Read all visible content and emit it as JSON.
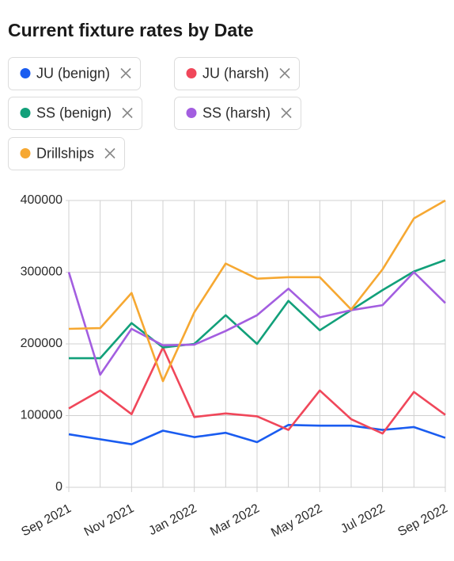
{
  "chart_data": {
    "type": "line",
    "title": "Current fixture rates by Date",
    "categories": [
      "Sep 2021",
      null,
      "Nov 2021",
      null,
      "Jan 2022",
      null,
      "Mar 2022",
      null,
      "May 2022",
      null,
      "Jul 2022",
      null,
      "Sep 2022"
    ],
    "series": [
      {
        "name": "JU (benign)",
        "color": "#1a5cf0",
        "values": [
          74000,
          67000,
          60000,
          79000,
          70000,
          76000,
          63000,
          87000,
          86000,
          86000,
          80000,
          84000,
          69000
        ]
      },
      {
        "name": "JU (harsh)",
        "color": "#f0475a",
        "values": [
          110000,
          135000,
          102000,
          195000,
          98000,
          103000,
          99000,
          80000,
          135000,
          95000,
          75000,
          133000,
          101000
        ]
      },
      {
        "name": "SS (benign)",
        "color": "#12a07a",
        "values": [
          180000,
          180000,
          229000,
          195000,
          200000,
          240000,
          200000,
          260000,
          219000,
          247000,
          275000,
          301000,
          317000
        ]
      },
      {
        "name": "SS (harsh)",
        "color": "#a35ee0",
        "values": [
          300000,
          157000,
          221000,
          198000,
          199000,
          218000,
          240000,
          277000,
          237000,
          247000,
          254000,
          300000,
          257000
        ]
      },
      {
        "name": "Drillships",
        "color": "#f6a832",
        "values": [
          221000,
          222000,
          271000,
          148000,
          244000,
          312000,
          291000,
          293000,
          293000,
          248000,
          304000,
          375000,
          400000
        ]
      }
    ],
    "ylim": [
      0,
      400000
    ],
    "yticks": [
      0,
      100000,
      200000,
      300000,
      400000
    ],
    "grid": true
  }
}
